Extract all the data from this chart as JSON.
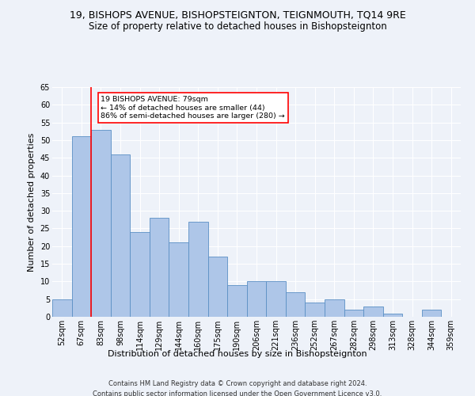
{
  "title": "19, BISHOPS AVENUE, BISHOPSTEIGNTON, TEIGNMOUTH, TQ14 9RE",
  "subtitle": "Size of property relative to detached houses in Bishopsteignton",
  "xlabel": "Distribution of detached houses by size in Bishopsteignton",
  "ylabel": "Number of detached properties",
  "categories": [
    "52sqm",
    "67sqm",
    "83sqm",
    "98sqm",
    "114sqm",
    "129sqm",
    "144sqm",
    "160sqm",
    "175sqm",
    "190sqm",
    "206sqm",
    "221sqm",
    "236sqm",
    "252sqm",
    "267sqm",
    "282sqm",
    "298sqm",
    "313sqm",
    "328sqm",
    "344sqm",
    "359sqm"
  ],
  "values": [
    5,
    51,
    53,
    46,
    24,
    28,
    21,
    27,
    17,
    9,
    10,
    10,
    7,
    4,
    5,
    2,
    3,
    1,
    0,
    2,
    0
  ],
  "bar_color": "#aec6e8",
  "bar_edge_color": "#5a8fc4",
  "annotation_text": "19 BISHOPS AVENUE: 79sqm\n← 14% of detached houses are smaller (44)\n86% of semi-detached houses are larger (280) →",
  "annotation_box_color": "white",
  "annotation_box_edge_color": "red",
  "vline_color": "red",
  "ylim": [
    0,
    65
  ],
  "yticks": [
    0,
    5,
    10,
    15,
    20,
    25,
    30,
    35,
    40,
    45,
    50,
    55,
    60,
    65
  ],
  "footer_line1": "Contains HM Land Registry data © Crown copyright and database right 2024.",
  "footer_line2": "Contains public sector information licensed under the Open Government Licence v3.0.",
  "bg_color": "#eef2f9",
  "grid_color": "white",
  "title_fontsize": 9,
  "subtitle_fontsize": 8.5,
  "axis_label_fontsize": 8,
  "tick_fontsize": 7,
  "footer_fontsize": 6,
  "ylabel_fontsize": 8
}
